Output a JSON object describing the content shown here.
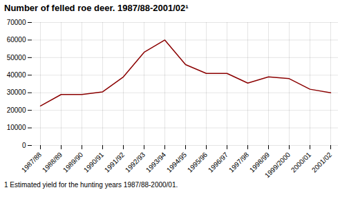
{
  "chart_data": {
    "type": "line",
    "title": "Number of felled roe deer. 1987/88-2001/02¹",
    "annotations": [
      "1 Estimated yield for the hunting years 1987/88-2000/01."
    ],
    "categories": [
      "1987/88",
      "1988/89",
      "1989/90",
      "1990/91",
      "1991/92",
      "1992/93",
      "1993/94",
      "1994/95",
      "1995/96",
      "1996/97",
      "1997/98",
      "1998/99",
      "1999/2000",
      "2000/01",
      "2001/02"
    ],
    "values": [
      22500,
      29000,
      29000,
      30500,
      39000,
      53000,
      60000,
      46000,
      41000,
      41000,
      35500,
      39000,
      38000,
      32000,
      30000
    ],
    "color": "#8B0000",
    "ylim": [
      0,
      70000
    ],
    "yticks": [
      0,
      10000,
      20000,
      30000,
      40000,
      50000,
      60000,
      70000
    ],
    "grid": true
  }
}
